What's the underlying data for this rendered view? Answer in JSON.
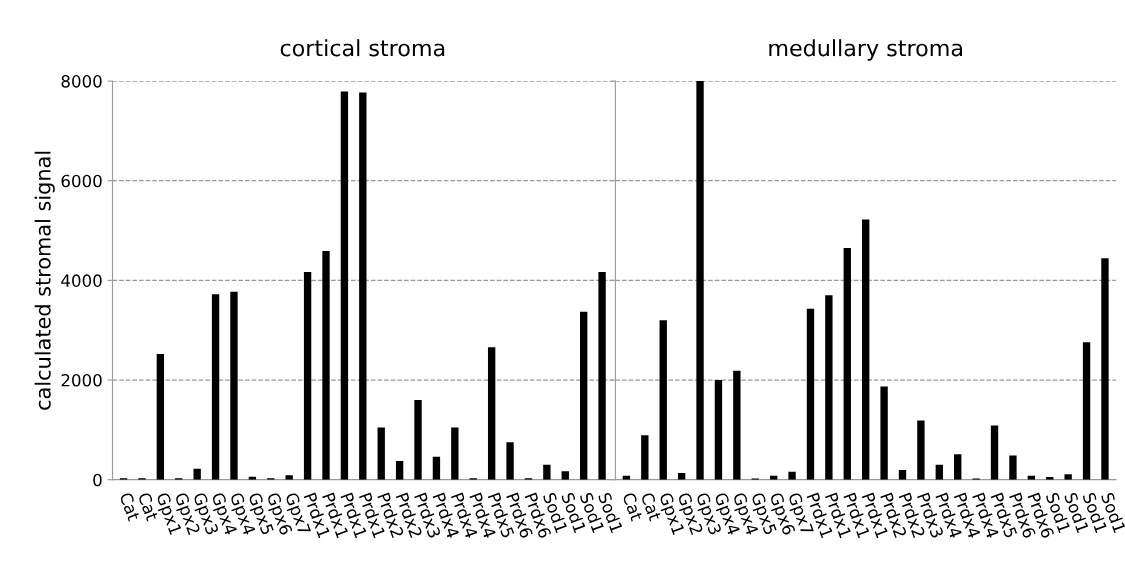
{
  "chart_data": [
    {
      "type": "bar",
      "title": "cortical stroma",
      "ylabel": "calculated stromal signal",
      "categories": [
        "Cat",
        "Cat",
        "Gpx1",
        "Gpx2",
        "Gpx3",
        "Gpx4",
        "Gpx4",
        "Gpx5",
        "Gpx6",
        "Gpx7",
        "Prdx1",
        "Prdx1",
        "Prdx1",
        "Prdx1",
        "Prdx2",
        "Prdx2",
        "Prdx3",
        "Prdx4",
        "Prdx4",
        "Prdx4",
        "Prdx5",
        "Prdx6",
        "Prdx6",
        "Sod1",
        "Sod1",
        "Sod1",
        "Sod1"
      ],
      "values": [
        30,
        30,
        2520,
        30,
        220,
        3720,
        3770,
        60,
        30,
        90,
        4170,
        4590,
        7790,
        7770,
        1045,
        375,
        1600,
        460,
        1045,
        30,
        2660,
        750,
        30,
        300,
        170,
        3370,
        4170
      ],
      "color": "#000000",
      "ylim": [
        0,
        8000
      ],
      "yticks": [
        0,
        2000,
        4000,
        6000,
        8000
      ],
      "grid": "y"
    },
    {
      "type": "bar",
      "title": "medullary stroma",
      "categories": [
        "Cat",
        "Cat",
        "Gpx1",
        "Gpx2",
        "Gpx3",
        "Gpx4",
        "Gpx4",
        "Gpx5",
        "Gpx6",
        "Gpx7",
        "Prdx1",
        "Prdx1",
        "Prdx1",
        "Prdx1",
        "Prdx2",
        "Prdx2",
        "Prdx3",
        "Prdx4",
        "Prdx4",
        "Prdx4",
        "Prdx5",
        "Prdx6",
        "Prdx6",
        "Sod1",
        "Sod1",
        "Sod1",
        "Sod1"
      ],
      "values": [
        80,
        890,
        3200,
        135,
        8000,
        2000,
        2185,
        25,
        80,
        160,
        3430,
        3700,
        4650,
        5220,
        1870,
        195,
        1190,
        300,
        510,
        25,
        1085,
        485,
        80,
        55,
        110,
        2760,
        4445
      ],
      "color": "#000000",
      "ylim": [
        0,
        8000
      ],
      "yticks": [
        0,
        2000,
        4000,
        6000,
        8000
      ],
      "grid": "y",
      "tick_labels": "x"
    }
  ]
}
